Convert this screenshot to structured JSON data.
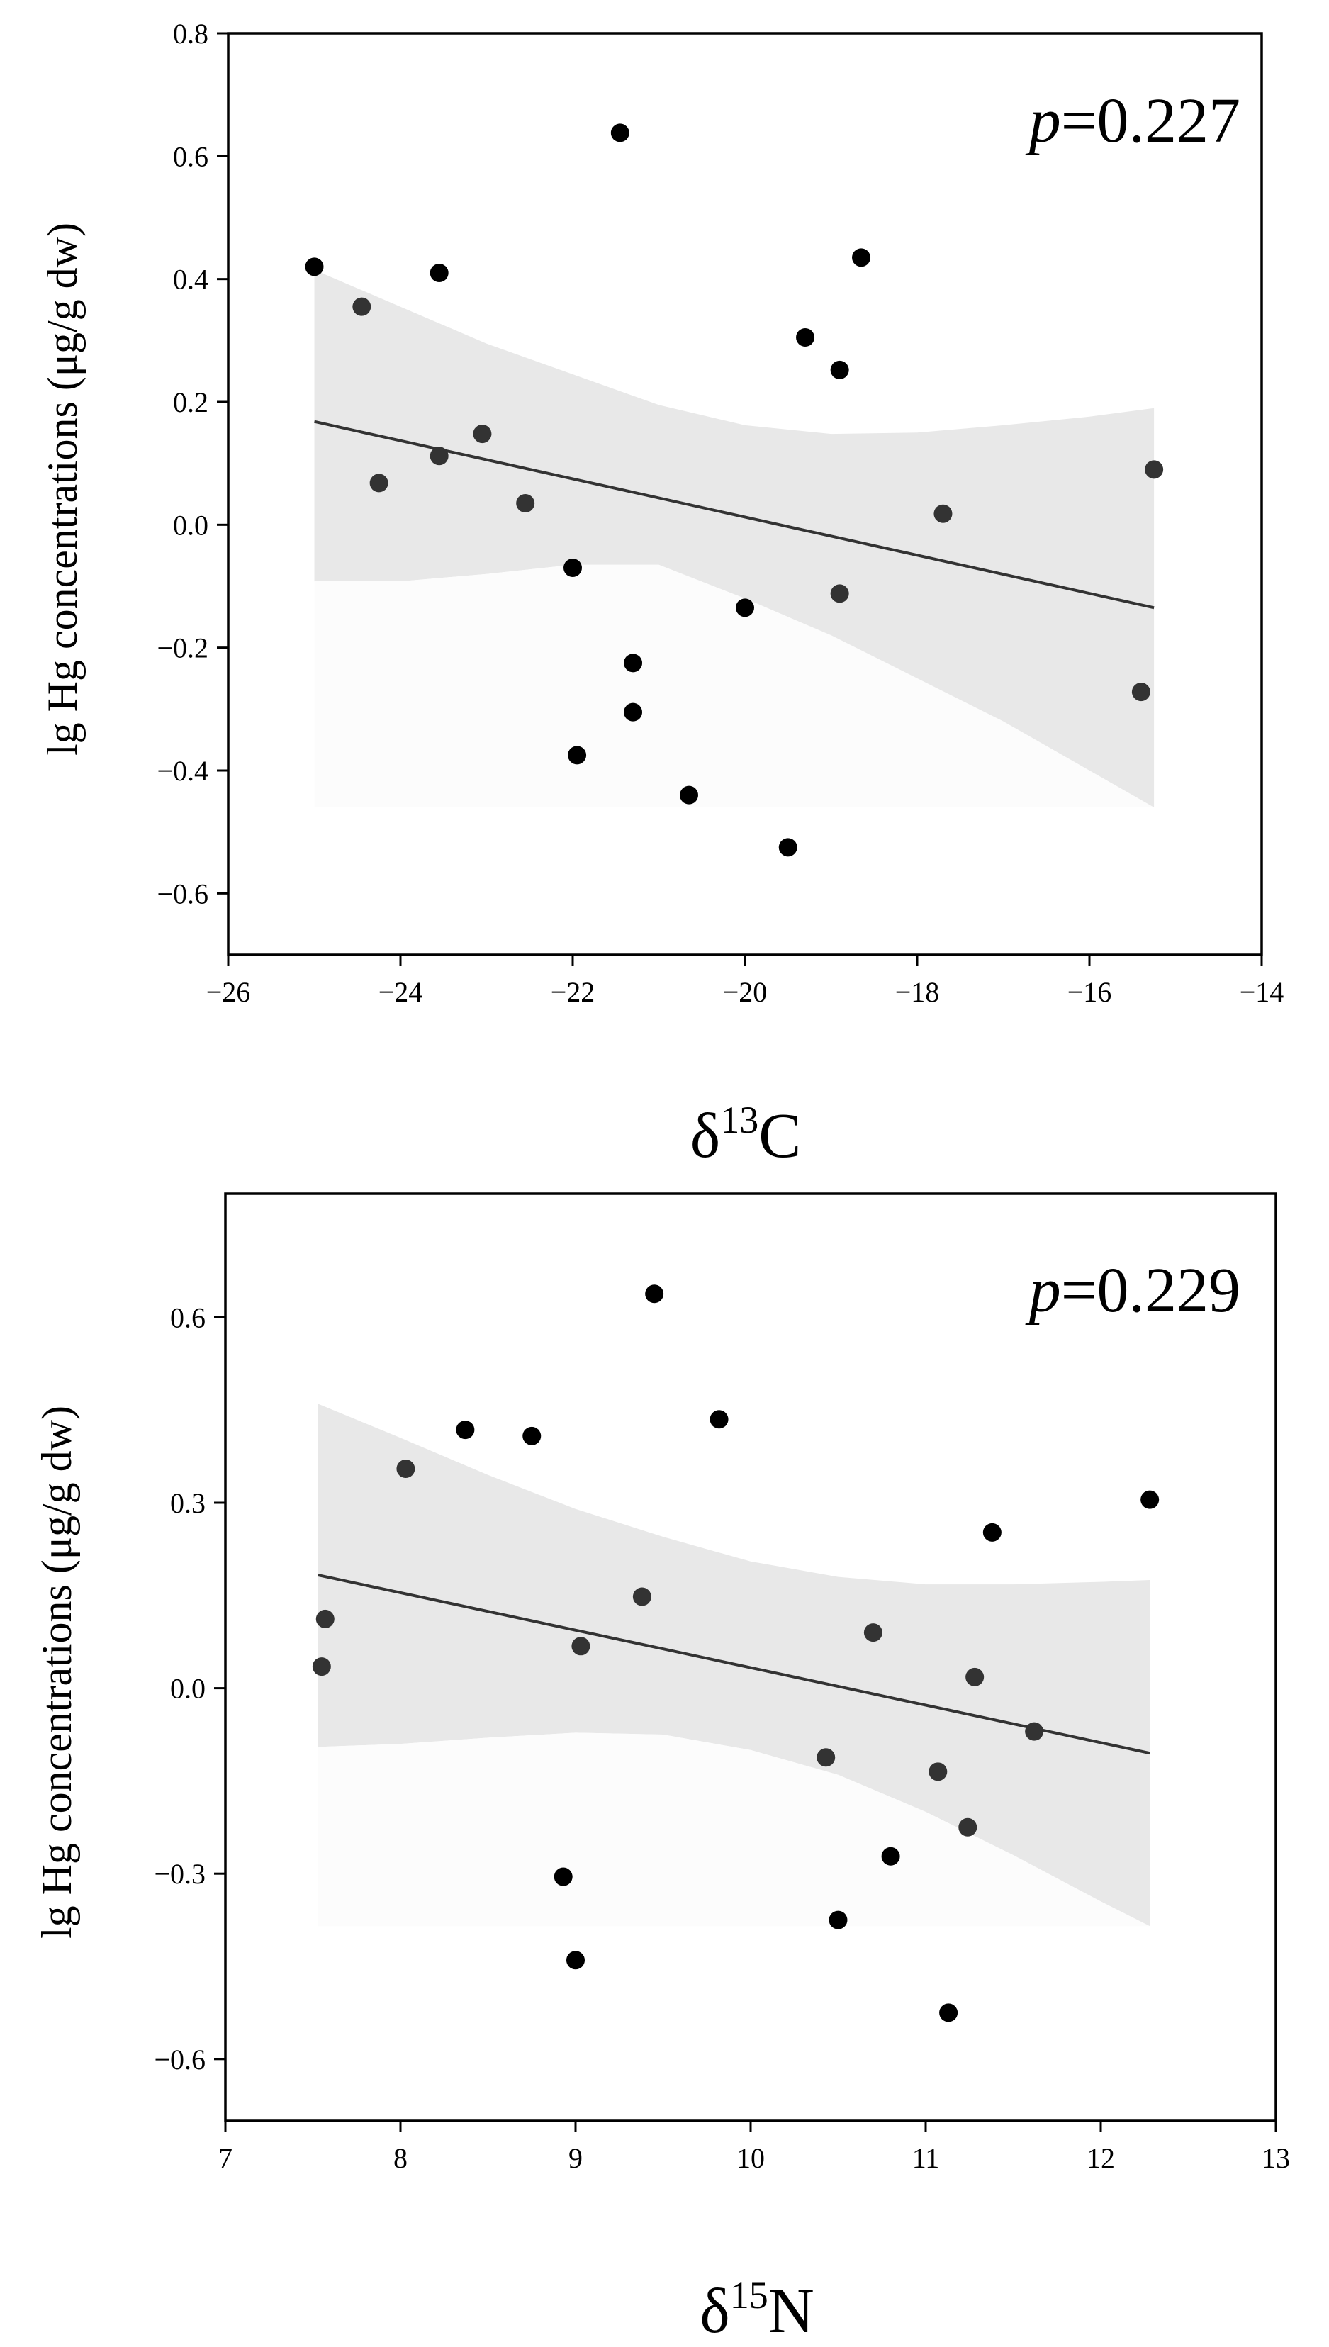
{
  "chart_data": [
    {
      "type": "scatter",
      "xlabel_main": "δ",
      "xlabel_sup": "13",
      "xlabel_tail": "C",
      "ylabel": "lg Hg concentrations (μg/g dw)",
      "annotation_italic": "p",
      "annotation_rest": "=0.227",
      "xlim": [
        -26,
        -14
      ],
      "ylim": [
        -0.7,
        0.8
      ],
      "xticks": [
        -26,
        -24,
        -22,
        -20,
        -18,
        -16,
        -14
      ],
      "xtick_labels": [
        "−26",
        "−24",
        "−22",
        "−20",
        "−18",
        "−16",
        "−14"
      ],
      "yticks": [
        -0.6,
        -0.4,
        -0.2,
        0.0,
        0.2,
        0.4,
        0.6,
        0.8
      ],
      "ytick_labels": [
        "−0.6",
        "−0.4",
        "−0.2",
        "0.0",
        "0.2",
        "0.4",
        "0.6",
        "0.8"
      ],
      "points": [
        {
          "x": -25.0,
          "y": 0.42
        },
        {
          "x": -24.45,
          "y": 0.355
        },
        {
          "x": -24.25,
          "y": 0.068
        },
        {
          "x": -23.55,
          "y": 0.41
        },
        {
          "x": -23.55,
          "y": 0.112
        },
        {
          "x": -23.05,
          "y": 0.148
        },
        {
          "x": -22.55,
          "y": 0.035
        },
        {
          "x": -22.0,
          "y": -0.07
        },
        {
          "x": -21.95,
          "y": -0.375
        },
        {
          "x": -21.45,
          "y": 0.638
        },
        {
          "x": -21.3,
          "y": -0.225
        },
        {
          "x": -21.3,
          "y": -0.305
        },
        {
          "x": -20.65,
          "y": -0.44
        },
        {
          "x": -20.0,
          "y": -0.135
        },
        {
          "x": -19.5,
          "y": -0.525
        },
        {
          "x": -19.3,
          "y": 0.305
        },
        {
          "x": -18.9,
          "y": 0.252
        },
        {
          "x": -18.9,
          "y": -0.112
        },
        {
          "x": -18.65,
          "y": 0.435
        },
        {
          "x": -17.7,
          "y": 0.018
        },
        {
          "x": -15.4,
          "y": -0.272
        },
        {
          "x": -15.25,
          "y": 0.09
        }
      ],
      "fit_line": {
        "x": [
          -25.0,
          -15.25
        ],
        "y": [
          0.168,
          -0.135
        ]
      },
      "confidence_band": {
        "x": [
          -25.0,
          -24.0,
          -23.0,
          -22.0,
          -21.0,
          -20.0,
          -19.0,
          -18.0,
          -17.0,
          -16.0,
          -15.25
        ],
        "upper": [
          0.415,
          0.355,
          0.295,
          0.245,
          0.195,
          0.162,
          0.148,
          0.15,
          0.162,
          0.176,
          0.19
        ],
        "lower": [
          -0.092,
          -0.092,
          -0.08,
          -0.065,
          -0.065,
          -0.12,
          -0.18,
          -0.25,
          -0.32,
          -0.4,
          -0.46
        ],
        "floor": -0.46
      }
    },
    {
      "type": "scatter",
      "xlabel_main": "δ",
      "xlabel_sup": "15",
      "xlabel_tail": "N",
      "ylabel": "lg Hg concentrations (μg/g dw)",
      "annotation_italic": "p",
      "annotation_rest": "=0.229",
      "xlim": [
        7,
        13
      ],
      "ylim": [
        -0.7,
        0.8
      ],
      "xticks": [
        7,
        8,
        9,
        10,
        11,
        12,
        13
      ],
      "xtick_labels": [
        "7",
        "8",
        "9",
        "10",
        "11",
        "12",
        "13"
      ],
      "yticks": [
        -0.6,
        -0.3,
        0.0,
        0.3,
        0.6
      ],
      "ytick_labels": [
        "−0.6",
        "−0.3",
        "0.0",
        "0.3",
        "0.6"
      ],
      "points": [
        {
          "x": 7.55,
          "y": 0.035
        },
        {
          "x": 7.57,
          "y": 0.112
        },
        {
          "x": 8.03,
          "y": 0.355
        },
        {
          "x": 8.37,
          "y": 0.418
        },
        {
          "x": 8.75,
          "y": 0.408
        },
        {
          "x": 8.93,
          "y": -0.305
        },
        {
          "x": 9.0,
          "y": -0.44
        },
        {
          "x": 9.03,
          "y": 0.068
        },
        {
          "x": 9.38,
          "y": 0.148
        },
        {
          "x": 9.45,
          "y": 0.638
        },
        {
          "x": 9.82,
          "y": 0.435
        },
        {
          "x": 10.43,
          "y": -0.112
        },
        {
          "x": 10.5,
          "y": -0.375
        },
        {
          "x": 10.7,
          "y": 0.09
        },
        {
          "x": 10.8,
          "y": -0.272
        },
        {
          "x": 11.07,
          "y": -0.135
        },
        {
          "x": 11.13,
          "y": -0.525
        },
        {
          "x": 11.24,
          "y": -0.225
        },
        {
          "x": 11.28,
          "y": 0.018
        },
        {
          "x": 11.38,
          "y": 0.252
        },
        {
          "x": 11.62,
          "y": -0.07
        },
        {
          "x": 12.28,
          "y": 0.305
        }
      ],
      "fit_line": {
        "x": [
          7.53,
          12.28
        ],
        "y": [
          0.183,
          -0.105
        ]
      },
      "confidence_band": {
        "x": [
          7.53,
          8.0,
          8.5,
          9.0,
          9.5,
          10.0,
          10.5,
          11.0,
          11.5,
          12.0,
          12.28
        ],
        "upper": [
          0.46,
          0.405,
          0.345,
          0.29,
          0.245,
          0.205,
          0.18,
          0.168,
          0.168,
          0.172,
          0.175
        ],
        "lower": [
          -0.095,
          -0.09,
          -0.08,
          -0.072,
          -0.075,
          -0.1,
          -0.14,
          -0.2,
          -0.27,
          -0.345,
          -0.385
        ],
        "floor": -0.385
      }
    }
  ]
}
